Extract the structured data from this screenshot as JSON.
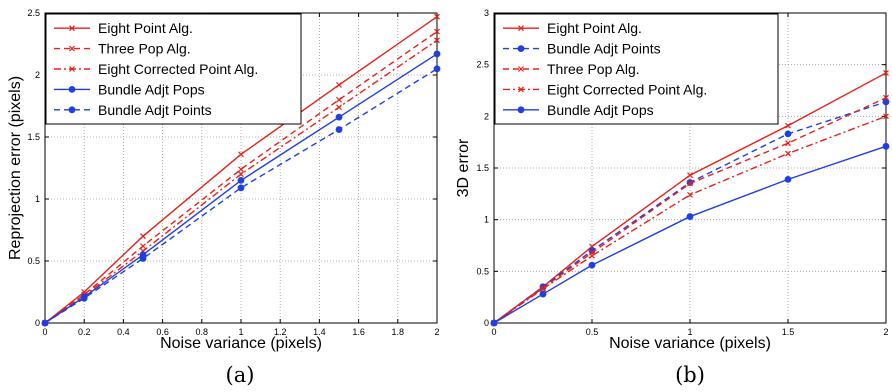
{
  "chart_data": [
    {
      "type": "line",
      "panel_caption": "(a)",
      "xlabel": "Noise variance (pixels)",
      "ylabel": "Reprojection error (pixels)",
      "xlim": [
        0,
        2
      ],
      "ylim": [
        0,
        2.5
      ],
      "xticks": [
        "0",
        "0.2",
        "0.4",
        "0.6",
        "0.8",
        "1",
        "1.2",
        "1.4",
        "1.6",
        "1.8",
        "2"
      ],
      "yticks": [
        "0",
        "0.5",
        "1",
        "1.5",
        "2",
        "2.5"
      ],
      "grid": true,
      "legend_position": "top-left",
      "series": [
        {
          "name": "Eight Point Alg.",
          "color": "#e8201a",
          "style": "solid",
          "marker": "x",
          "x": [
            0,
            0.2,
            0.5,
            1,
            1.5,
            2
          ],
          "y": [
            0,
            0.25,
            0.7,
            1.36,
            1.92,
            2.47
          ]
        },
        {
          "name": "Three Pop Alg.",
          "color": "#e8201a",
          "style": "dashed",
          "marker": "x",
          "x": [
            0,
            0.2,
            0.5,
            1,
            1.5,
            2
          ],
          "y": [
            0,
            0.23,
            0.62,
            1.24,
            1.8,
            2.35
          ]
        },
        {
          "name": "Eight Corrected Point Alg.",
          "color": "#e8201a",
          "style": "dashdot",
          "marker": "x",
          "x": [
            0,
            0.2,
            0.5,
            1,
            1.5,
            2
          ],
          "y": [
            0,
            0.22,
            0.58,
            1.2,
            1.74,
            2.28
          ]
        },
        {
          "name": "Bundle Adjt Pops",
          "color": "#1f3fe0",
          "style": "solid",
          "marker": "dot",
          "x": [
            0,
            0.2,
            0.5,
            1,
            1.5,
            2
          ],
          "y": [
            0,
            0.21,
            0.55,
            1.15,
            1.66,
            2.17
          ]
        },
        {
          "name": "Bundle Adjt Points",
          "color": "#1f3fe0",
          "style": "dashed",
          "marker": "dot",
          "x": [
            0,
            0.2,
            0.5,
            1,
            1.5,
            2
          ],
          "y": [
            0,
            0.2,
            0.52,
            1.09,
            1.56,
            2.05
          ]
        }
      ]
    },
    {
      "type": "line",
      "panel_caption": "(b)",
      "xlabel": "Noise variance (pixels)",
      "ylabel": "3D error",
      "xlim": [
        0,
        2
      ],
      "ylim": [
        0,
        3
      ],
      "xticks": [
        "0",
        "0.5",
        "1",
        "1.5",
        "2"
      ],
      "yticks": [
        "0",
        "0.5",
        "1",
        "1.5",
        "2",
        "2.5",
        "3"
      ],
      "grid": true,
      "legend_position": "top-left",
      "series": [
        {
          "name": "Eight Point Alg.",
          "color": "#e8201a",
          "style": "solid",
          "marker": "x",
          "x": [
            0,
            0.25,
            0.5,
            1,
            1.5,
            2
          ],
          "y": [
            0,
            0.35,
            0.74,
            1.43,
            1.91,
            2.42
          ]
        },
        {
          "name": "Bundle Adjt Points",
          "color": "#1f3fe0",
          "style": "dashed",
          "marker": "dot",
          "x": [
            0,
            0.25,
            0.5,
            1,
            1.5,
            2
          ],
          "y": [
            0,
            0.35,
            0.7,
            1.36,
            1.83,
            2.14
          ]
        },
        {
          "name": "Three Pop Alg.",
          "color": "#e8201a",
          "style": "dashed",
          "marker": "x",
          "x": [
            0,
            0.25,
            0.5,
            1,
            1.5,
            2
          ],
          "y": [
            0,
            0.34,
            0.68,
            1.35,
            1.74,
            2.18
          ]
        },
        {
          "name": "Eight Corrected Point Alg.",
          "color": "#e8201a",
          "style": "dashdot",
          "marker": "x",
          "x": [
            0,
            0.25,
            0.5,
            1,
            1.5,
            2
          ],
          "y": [
            0,
            0.33,
            0.65,
            1.24,
            1.64,
            2.0
          ]
        },
        {
          "name": "Bundle Adjt Pops",
          "color": "#1f3fe0",
          "style": "solid",
          "marker": "dot",
          "x": [
            0,
            0.25,
            0.5,
            1,
            1.5,
            2
          ],
          "y": [
            0,
            0.28,
            0.56,
            1.03,
            1.39,
            1.71
          ]
        }
      ]
    }
  ]
}
